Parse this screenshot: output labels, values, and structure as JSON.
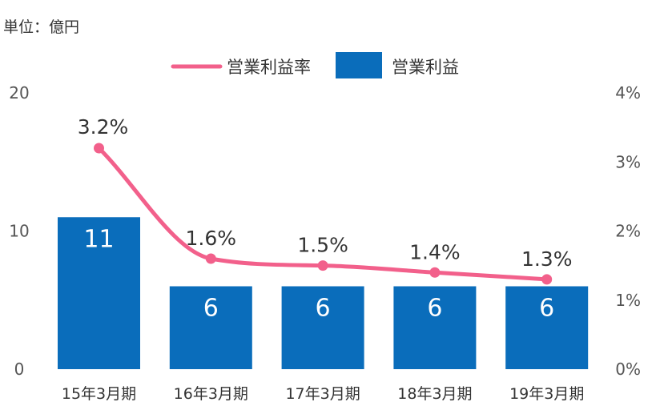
{
  "unit_label": "単位：億円",
  "chart_data": {
    "type": "bar",
    "categories": [
      "15年3月期",
      "16年3月期",
      "17年3月期",
      "18年3月期",
      "19年3月期"
    ],
    "series": [
      {
        "name": "営業利益",
        "kind": "bar",
        "axis": "left",
        "color": "#0a6dbb",
        "values": [
          11,
          6,
          6,
          6,
          6
        ],
        "labels": [
          "11",
          "6",
          "6",
          "6",
          "6"
        ]
      },
      {
        "name": "営業利益率",
        "kind": "line",
        "axis": "right",
        "color": "#f2608b",
        "values": [
          3.2,
          1.6,
          1.5,
          1.4,
          1.3
        ],
        "labels": [
          "3.2%",
          "1.6%",
          "1.5%",
          "1.4%",
          "1.3%"
        ]
      }
    ],
    "y_left": {
      "ylim": [
        0,
        20
      ],
      "ticks": [
        "0",
        "10",
        "20"
      ]
    },
    "y_right": {
      "ylim": [
        0,
        4
      ],
      "ticks": [
        "0%",
        "1%",
        "2%",
        "3%",
        "4%"
      ]
    },
    "legend": {
      "position": "top-center",
      "items": [
        "営業利益率",
        "営業利益"
      ]
    },
    "grid": false
  }
}
